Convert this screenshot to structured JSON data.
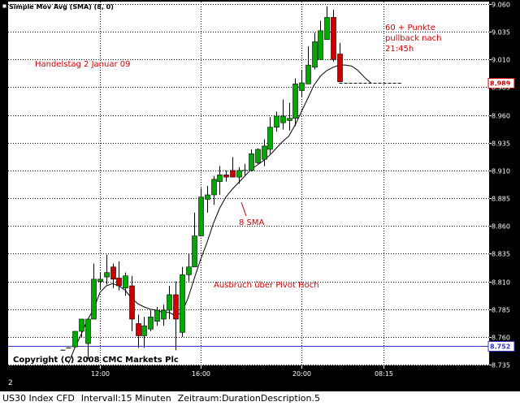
{
  "chart_data": {
    "type": "candlestick",
    "indicator_label": "Simple Mov Avg (SMA) (8, 0)",
    "y_axis": {
      "min": 8.735,
      "max": 9.06,
      "ticks": [
        "9.060",
        "9.035",
        "9.010",
        "8.985",
        "8.960",
        "8.935",
        "8.910",
        "8.885",
        "8.860",
        "8.835",
        "8.810",
        "8.785",
        "8.760",
        "8.735"
      ]
    },
    "x_axis": {
      "ticks": [
        {
          "label": "12:00",
          "bar": 6
        },
        {
          "label": "16:00",
          "bar": 22
        },
        {
          "label": "20:00",
          "bar": 38
        },
        {
          "label": "08:15",
          "bar": 51
        }
      ]
    },
    "candles": [
      {
        "o": 8.748,
        "h": 8.748,
        "l": 8.748,
        "c": 8.748
      },
      {
        "o": 8.75,
        "h": 8.75,
        "l": 8.75,
        "c": 8.75
      },
      {
        "o": 8.751,
        "h": 8.765,
        "l": 8.751,
        "c": 8.765
      },
      {
        "o": 8.765,
        "h": 8.776,
        "l": 8.76,
        "c": 8.776
      },
      {
        "o": 8.754,
        "h": 8.776,
        "l": 8.74,
        "c": 8.776
      },
      {
        "o": 8.776,
        "h": 8.826,
        "l": 8.776,
        "c": 8.812
      },
      {
        "o": 8.81,
        "h": 8.818,
        "l": 8.803,
        "c": 8.812
      },
      {
        "o": 8.814,
        "h": 8.834,
        "l": 8.807,
        "c": 8.818
      },
      {
        "o": 8.823,
        "h": 8.826,
        "l": 8.804,
        "c": 8.812
      },
      {
        "o": 8.813,
        "h": 8.828,
        "l": 8.802,
        "c": 8.806
      },
      {
        "o": 8.804,
        "h": 8.818,
        "l": 8.797,
        "c": 8.815
      },
      {
        "o": 8.806,
        "h": 8.815,
        "l": 8.765,
        "c": 8.776
      },
      {
        "o": 8.772,
        "h": 8.78,
        "l": 8.75,
        "c": 8.761
      },
      {
        "o": 8.761,
        "h": 8.778,
        "l": 8.75,
        "c": 8.77
      },
      {
        "o": 8.767,
        "h": 8.784,
        "l": 8.765,
        "c": 8.778
      },
      {
        "o": 8.774,
        "h": 8.787,
        "l": 8.77,
        "c": 8.784
      },
      {
        "o": 8.776,
        "h": 8.789,
        "l": 8.77,
        "c": 8.784
      },
      {
        "o": 8.784,
        "h": 8.806,
        "l": 8.776,
        "c": 8.798
      },
      {
        "o": 8.798,
        "h": 8.81,
        "l": 8.748,
        "c": 8.776
      },
      {
        "o": 8.764,
        "h": 8.823,
        "l": 8.76,
        "c": 8.816
      },
      {
        "o": 8.816,
        "h": 8.835,
        "l": 8.81,
        "c": 8.823
      },
      {
        "o": 8.823,
        "h": 8.872,
        "l": 8.823,
        "c": 8.851
      },
      {
        "o": 8.851,
        "h": 8.894,
        "l": 8.851,
        "c": 8.886
      },
      {
        "o": 8.884,
        "h": 8.896,
        "l": 8.872,
        "c": 8.888
      },
      {
        "o": 8.888,
        "h": 8.905,
        "l": 8.879,
        "c": 8.902
      },
      {
        "o": 8.9,
        "h": 8.914,
        "l": 8.888,
        "c": 8.906
      },
      {
        "o": 8.906,
        "h": 8.91,
        "l": 8.9,
        "c": 8.904
      },
      {
        "o": 8.91,
        "h": 8.922,
        "l": 8.905,
        "c": 8.904
      },
      {
        "o": 8.904,
        "h": 8.913,
        "l": 8.898,
        "c": 8.91
      },
      {
        "o": 8.91,
        "h": 8.916,
        "l": 8.905,
        "c": 8.91
      },
      {
        "o": 8.91,
        "h": 8.929,
        "l": 8.909,
        "c": 8.925
      },
      {
        "o": 8.917,
        "h": 8.93,
        "l": 8.916,
        "c": 8.929
      },
      {
        "o": 8.92,
        "h": 8.938,
        "l": 8.914,
        "c": 8.932
      },
      {
        "o": 8.929,
        "h": 8.958,
        "l": 8.925,
        "c": 8.949
      },
      {
        "o": 8.949,
        "h": 8.963,
        "l": 8.945,
        "c": 8.959
      },
      {
        "o": 8.953,
        "h": 8.974,
        "l": 8.947,
        "c": 8.959
      },
      {
        "o": 8.955,
        "h": 8.971,
        "l": 8.946,
        "c": 8.957
      },
      {
        "o": 8.957,
        "h": 8.993,
        "l": 8.95,
        "c": 8.988
      },
      {
        "o": 8.982,
        "h": 9.0,
        "l": 8.976,
        "c": 8.989
      },
      {
        "o": 8.988,
        "h": 9.022,
        "l": 8.988,
        "c": 9.005
      },
      {
        "o": 9.003,
        "h": 9.034,
        "l": 9.001,
        "c": 9.026
      },
      {
        "o": 9.01,
        "h": 9.045,
        "l": 9.01,
        "c": 9.036
      },
      {
        "o": 9.028,
        "h": 9.058,
        "l": 9.028,
        "c": 9.048
      },
      {
        "o": 9.048,
        "h": 9.055,
        "l": 9.008,
        "c": 9.01
      },
      {
        "o": 9.015,
        "h": 9.025,
        "l": 8.99,
        "c": 8.99
      }
    ],
    "sma": [
      [
        1,
        8.736
      ],
      [
        2,
        8.75
      ],
      [
        3,
        8.762
      ],
      [
        4,
        8.775
      ],
      [
        5,
        8.785
      ],
      [
        6,
        8.8
      ],
      [
        7,
        8.806
      ],
      [
        8,
        8.808
      ],
      [
        9,
        8.806
      ],
      [
        10,
        8.802
      ],
      [
        11,
        8.795
      ],
      [
        12,
        8.79
      ],
      [
        13,
        8.787
      ],
      [
        14,
        8.785
      ],
      [
        15,
        8.784
      ],
      [
        16,
        8.782
      ],
      [
        17,
        8.782
      ],
      [
        18,
        8.779
      ],
      [
        19,
        8.782
      ],
      [
        20,
        8.795
      ],
      [
        21,
        8.813
      ],
      [
        22,
        8.83
      ],
      [
        23,
        8.845
      ],
      [
        24,
        8.862
      ],
      [
        25,
        8.876
      ],
      [
        26,
        8.886
      ],
      [
        27,
        8.893
      ],
      [
        28,
        8.899
      ],
      [
        29,
        8.905
      ],
      [
        30,
        8.911
      ],
      [
        31,
        8.915
      ],
      [
        32,
        8.919
      ],
      [
        33,
        8.924
      ],
      [
        34,
        8.93
      ],
      [
        35,
        8.936
      ],
      [
        36,
        8.941
      ],
      [
        37,
        8.951
      ],
      [
        38,
        8.963
      ],
      [
        39,
        8.975
      ],
      [
        40,
        8.987
      ],
      [
        41,
        8.995
      ],
      [
        42,
        9.0
      ],
      [
        43,
        9.003
      ],
      [
        44,
        9.005
      ],
      [
        45,
        9.005
      ],
      [
        46,
        9.004
      ],
      [
        47,
        9.0
      ],
      [
        48,
        8.994
      ],
      [
        49,
        8.989
      ]
    ],
    "current_price": {
      "value": 8.989,
      "label": "8.989",
      "color": "#cc0000",
      "line_from_bar": 44,
      "line_to_bar": 54
    },
    "pivot_line": {
      "value": 8.752,
      "label": "8.752",
      "color": "#3333cc"
    },
    "annotations": [
      {
        "text": "Handelstag 2 Januar 09",
        "color": "#cc0000"
      },
      {
        "text": "60 + Punkte",
        "color": "#cc0000"
      },
      {
        "text": "pullback nach",
        "color": "#cc0000"
      },
      {
        "text": "21:45h",
        "color": "#cc0000"
      },
      {
        "text": "8 SMA",
        "color": "#cc0000"
      },
      {
        "text": "Ausbruch über Pivot Hoch",
        "color": "#cc0000"
      }
    ],
    "copyright": "Copyright (C) 2008 CMC Markets Plc",
    "x_scroll_label": "2",
    "colors": {
      "background": "#ffffff",
      "frame": "#000000",
      "grid": "#000000",
      "bull": "#00aa00",
      "bear": "#cc0000",
      "sma": "#000000",
      "axis_text": "#ffffff"
    }
  },
  "status": {
    "instrument": "US30 Index CFD",
    "interval": "Intervall:15 Minuten",
    "range": "Zeitraum:DurationDescription.5"
  }
}
